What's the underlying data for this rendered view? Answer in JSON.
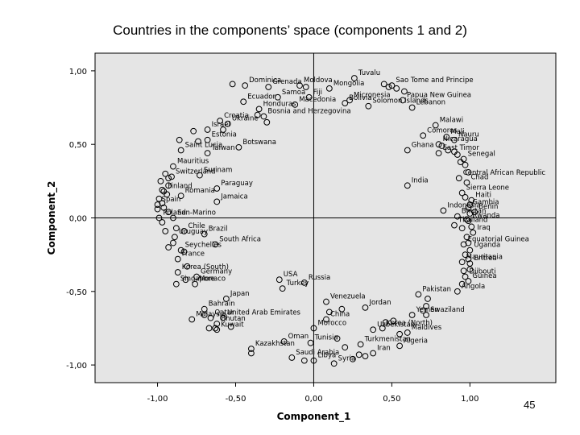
{
  "slide": {
    "number": "45"
  },
  "chart_data": {
    "type": "scatter",
    "title": "Countries in the components’ space (components 1 and 2)",
    "xlabel": "Component_1",
    "ylabel": "Component_2",
    "xlim": [
      -1.4,
      1.55
    ],
    "ylim": [
      -1.12,
      1.12
    ],
    "xticks": [
      -1.0,
      -0.5,
      0.0,
      0.5,
      1.0
    ],
    "xtick_labels": [
      "-1,00",
      "-0,50",
      "0,00",
      "0,50",
      "1,00"
    ],
    "yticks": [
      1.0,
      0.5,
      0.0,
      -0.5,
      -1.0
    ],
    "ytick_labels": [
      "1,00",
      "0,50",
      "0,00",
      "-0,50",
      "-1,00"
    ],
    "grid": false,
    "reference_lines": {
      "x": 0.0,
      "y": 0.0
    },
    "marker": "open-circle",
    "background_color": "#e5e5e5",
    "labeled_points": [
      {
        "label": "Tuvalu",
        "x": 0.26,
        "y": 0.95
      },
      {
        "label": "Dominica",
        "x": -0.44,
        "y": 0.9
      },
      {
        "label": "Grenada",
        "x": -0.29,
        "y": 0.89
      },
      {
        "label": "Moldova",
        "x": -0.09,
        "y": 0.9
      },
      {
        "label": "Mongolia",
        "x": 0.1,
        "y": 0.88
      },
      {
        "label": "Sao Tome and Principe",
        "x": 0.5,
        "y": 0.9
      },
      {
        "label": "Samoa",
        "x": -0.23,
        "y": 0.82
      },
      {
        "label": "Fiji",
        "x": -0.03,
        "y": 0.82
      },
      {
        "label": "Micronesia",
        "x": 0.23,
        "y": 0.8
      },
      {
        "label": "Papua New Guinea",
        "x": 0.57,
        "y": 0.8
      },
      {
        "label": "Ecuador",
        "x": -0.45,
        "y": 0.79
      },
      {
        "label": "Macedonia",
        "x": -0.12,
        "y": 0.77
      },
      {
        "label": "Bolivia",
        "x": 0.2,
        "y": 0.78
      },
      {
        "label": "Honduras",
        "x": -0.35,
        "y": 0.74
      },
      {
        "label": "Solomon Islands",
        "x": 0.35,
        "y": 0.76
      },
      {
        "label": "Lebanon",
        "x": 0.63,
        "y": 0.75
      },
      {
        "label": "Bosnia and Herzegovina",
        "x": -0.32,
        "y": 0.69
      },
      {
        "label": "Croatia",
        "x": -0.6,
        "y": 0.66
      },
      {
        "label": "Malawi",
        "x": 0.78,
        "y": 0.63
      },
      {
        "label": "Israel",
        "x": -0.68,
        "y": 0.6
      },
      {
        "label": "Ukraine",
        "x": -0.55,
        "y": 0.64
      },
      {
        "label": "Comoros",
        "x": 0.7,
        "y": 0.56
      },
      {
        "label": "Mali",
        "x": 0.85,
        "y": 0.55
      },
      {
        "label": "Nauru",
        "x": 0.9,
        "y": 0.53
      },
      {
        "label": "Nicaragua",
        "x": 0.8,
        "y": 0.5
      },
      {
        "label": "Estonia",
        "x": -0.68,
        "y": 0.53
      },
      {
        "label": "Saint Lucia",
        "x": -0.85,
        "y": 0.46
      },
      {
        "label": "Botswana",
        "x": -0.48,
        "y": 0.48
      },
      {
        "label": "Taiwan",
        "x": -0.68,
        "y": 0.44
      },
      {
        "label": "Ghana",
        "x": 0.6,
        "y": 0.46
      },
      {
        "label": "East Timor",
        "x": 0.8,
        "y": 0.44
      },
      {
        "label": "Senegal",
        "x": 0.96,
        "y": 0.4
      },
      {
        "label": "Mauritius",
        "x": -0.9,
        "y": 0.35
      },
      {
        "label": "Switzerland",
        "x": -0.91,
        "y": 0.28
      },
      {
        "label": "Surinam",
        "x": -0.73,
        "y": 0.29
      },
      {
        "label": "Central African Republic",
        "x": 0.93,
        "y": 0.27
      },
      {
        "label": "Chad",
        "x": 0.98,
        "y": 0.24
      },
      {
        "label": "Finland",
        "x": -0.96,
        "y": 0.18
      },
      {
        "label": "Paraguay",
        "x": -0.62,
        "y": 0.2
      },
      {
        "label": "India",
        "x": 0.6,
        "y": 0.22
      },
      {
        "label": "Sierra Leone",
        "x": 0.95,
        "y": 0.17
      },
      {
        "label": "Haiti",
        "x": 1.01,
        "y": 0.12
      },
      {
        "label": "Spain",
        "x": -1.0,
        "y": 0.09
      },
      {
        "label": "Romania",
        "x": -0.85,
        "y": 0.15
      },
      {
        "label": "Gambia",
        "x": 0.99,
        "y": 0.07
      },
      {
        "label": "Jamaica",
        "x": -0.62,
        "y": 0.11
      },
      {
        "label": "Benin",
        "x": 1.03,
        "y": 0.04
      },
      {
        "label": "Indonesia",
        "x": 0.83,
        "y": 0.05
      },
      {
        "label": "Bhutan",
        "x": 0.92,
        "y": 0.01
      },
      {
        "label": "Rwanda",
        "x": 0.99,
        "y": -0.02
      },
      {
        "label": "Poland",
        "x": -0.99,
        "y": 0.0
      },
      {
        "label": "San-Marino",
        "x": -0.9,
        "y": 0.0
      },
      {
        "label": "Thailand",
        "x": 0.9,
        "y": -0.05
      },
      {
        "label": "Chile",
        "x": -0.83,
        "y": -0.09
      },
      {
        "label": "Brazil",
        "x": -0.7,
        "y": -0.11
      },
      {
        "label": "Iraq",
        "x": 1.02,
        "y": -0.1
      },
      {
        "label": "Uruguay",
        "x": -0.89,
        "y": -0.13
      },
      {
        "label": "Equatorial Guinea",
        "x": 0.96,
        "y": -0.18
      },
      {
        "label": "Seychelles",
        "x": -0.85,
        "y": -0.22
      },
      {
        "label": "South Africa",
        "x": -0.63,
        "y": -0.18
      },
      {
        "label": "Uganda",
        "x": 1.0,
        "y": -0.22
      },
      {
        "label": "France",
        "x": -0.87,
        "y": -0.28
      },
      {
        "label": "Korea (South)",
        "x": -0.87,
        "y": -0.37
      },
      {
        "label": "Mauritania",
        "x": 0.95,
        "y": -0.3
      },
      {
        "label": "Eritrea",
        "x": 1.0,
        "y": -0.31
      },
      {
        "label": "USA",
        "x": -0.22,
        "y": -0.42
      },
      {
        "label": "Germany",
        "x": -0.75,
        "y": -0.4
      },
      {
        "label": "Russia",
        "x": -0.06,
        "y": -0.44
      },
      {
        "label": "Djibouti",
        "x": 0.97,
        "y": -0.4
      },
      {
        "label": "Guinea",
        "x": 0.99,
        "y": -0.43
      },
      {
        "label": "Singapore",
        "x": -0.88,
        "y": -0.45
      },
      {
        "label": "Monaco",
        "x": -0.76,
        "y": -0.45
      },
      {
        "label": "Turkey",
        "x": -0.2,
        "y": -0.48
      },
      {
        "label": "Japan",
        "x": -0.56,
        "y": -0.55
      },
      {
        "label": "Angola",
        "x": 0.92,
        "y": -0.5
      },
      {
        "label": "Pakistan",
        "x": 0.67,
        "y": -0.52
      },
      {
        "label": "Venezuela",
        "x": 0.08,
        "y": -0.57
      },
      {
        "label": "Bahrain",
        "x": -0.7,
        "y": -0.62
      },
      {
        "label": "Jordan",
        "x": 0.33,
        "y": -0.61
      },
      {
        "label": "Malaysia",
        "x": -0.78,
        "y": -0.69
      },
      {
        "label": "United Arab Emirates",
        "x": -0.58,
        "y": -0.68
      },
      {
        "label": "Qatar",
        "x": -0.66,
        "y": -0.68
      },
      {
        "label": "Yemen",
        "x": 0.63,
        "y": -0.66
      },
      {
        "label": "China",
        "x": 0.08,
        "y": -0.69
      },
      {
        "label": "Swaziland",
        "x": 0.72,
        "y": -0.66
      },
      {
        "label": "Bhutan",
        "x": -0.62,
        "y": -0.72
      },
      {
        "label": "Korea (North)",
        "x": 0.44,
        "y": -0.75
      },
      {
        "label": "Morocco",
        "x": 0.0,
        "y": -0.75
      },
      {
        "label": "Uzbekistan",
        "x": 0.38,
        "y": -0.76
      },
      {
        "label": "Kuwait",
        "x": -0.62,
        "y": -0.76
      },
      {
        "label": "Maldives",
        "x": 0.6,
        "y": -0.78
      },
      {
        "label": "Oman",
        "x": -0.19,
        "y": -0.84
      },
      {
        "label": "Tunisia",
        "x": -0.02,
        "y": -0.85
      },
      {
        "label": "Turkmenistan",
        "x": 0.3,
        "y": -0.86
      },
      {
        "label": "Kazakhstan",
        "x": -0.4,
        "y": -0.89
      },
      {
        "label": "Algeria",
        "x": 0.55,
        "y": -0.87
      },
      {
        "label": "Iran",
        "x": 0.38,
        "y": -0.92
      },
      {
        "label": "Saudi Arabia",
        "x": -0.14,
        "y": -0.95
      },
      {
        "label": "Libya",
        "x": 0.0,
        "y": -0.97
      },
      {
        "label": "Syria",
        "x": 0.13,
        "y": -0.99
      }
    ],
    "unlabeled_points": [
      [
        -0.52,
        0.91
      ],
      [
        -0.05,
        0.89
      ],
      [
        0.45,
        0.91
      ],
      [
        0.48,
        0.89
      ],
      [
        0.53,
        0.88
      ],
      [
        0.58,
        0.86
      ],
      [
        -0.36,
        0.7
      ],
      [
        -0.3,
        0.65
      ],
      [
        -0.77,
        0.59
      ],
      [
        -0.74,
        0.52
      ],
      [
        -0.58,
        0.6
      ],
      [
        -0.86,
        0.53
      ],
      [
        0.82,
        0.49
      ],
      [
        0.86,
        0.46
      ],
      [
        0.9,
        0.45
      ],
      [
        0.92,
        0.43
      ],
      [
        0.94,
        0.38
      ],
      [
        0.97,
        0.36
      ],
      [
        0.99,
        0.31
      ],
      [
        -0.95,
        0.3
      ],
      [
        -0.93,
        0.27
      ],
      [
        -0.98,
        0.25
      ],
      [
        -0.93,
        0.22
      ],
      [
        -0.97,
        0.19
      ],
      [
        -0.94,
        0.16
      ],
      [
        -0.99,
        0.13
      ],
      [
        -0.97,
        0.1
      ],
      [
        -1.0,
        0.06
      ],
      [
        -0.96,
        0.07
      ],
      [
        -0.93,
        0.04
      ],
      [
        0.97,
        0.14
      ],
      [
        1.0,
        0.09
      ],
      [
        1.0,
        0.03
      ],
      [
        0.98,
        -0.01
      ],
      [
        -0.97,
        -0.03
      ],
      [
        -0.88,
        -0.07
      ],
      [
        0.95,
        -0.07
      ],
      [
        1.01,
        -0.06
      ],
      [
        -0.95,
        -0.09
      ],
      [
        0.98,
        -0.13
      ],
      [
        -0.9,
        -0.17
      ],
      [
        0.99,
        -0.17
      ],
      [
        -0.93,
        -0.2
      ],
      [
        -0.83,
        -0.23
      ],
      [
        0.97,
        -0.25
      ],
      [
        -0.81,
        -0.33
      ],
      [
        0.99,
        -0.28
      ],
      [
        1.0,
        -0.35
      ],
      [
        0.96,
        -0.36
      ],
      [
        -0.82,
        -0.42
      ],
      [
        0.95,
        -0.45
      ],
      [
        0.73,
        -0.55
      ],
      [
        0.72,
        -0.6
      ],
      [
        0.7,
        -0.63
      ],
      [
        0.18,
        -0.62
      ],
      [
        0.1,
        -0.64
      ],
      [
        -0.7,
        -0.66
      ],
      [
        0.46,
        -0.71
      ],
      [
        0.51,
        -0.7
      ],
      [
        -0.63,
        -0.75
      ],
      [
        -0.67,
        -0.75
      ],
      [
        -0.53,
        -0.74
      ],
      [
        0.55,
        -0.79
      ],
      [
        0.15,
        -0.82
      ],
      [
        0.2,
        -0.88
      ],
      [
        0.29,
        -0.93
      ],
      [
        0.33,
        -0.94
      ],
      [
        0.25,
        -0.96
      ],
      [
        -0.4,
        -0.92
      ],
      [
        -0.06,
        -0.97
      ]
    ]
  }
}
